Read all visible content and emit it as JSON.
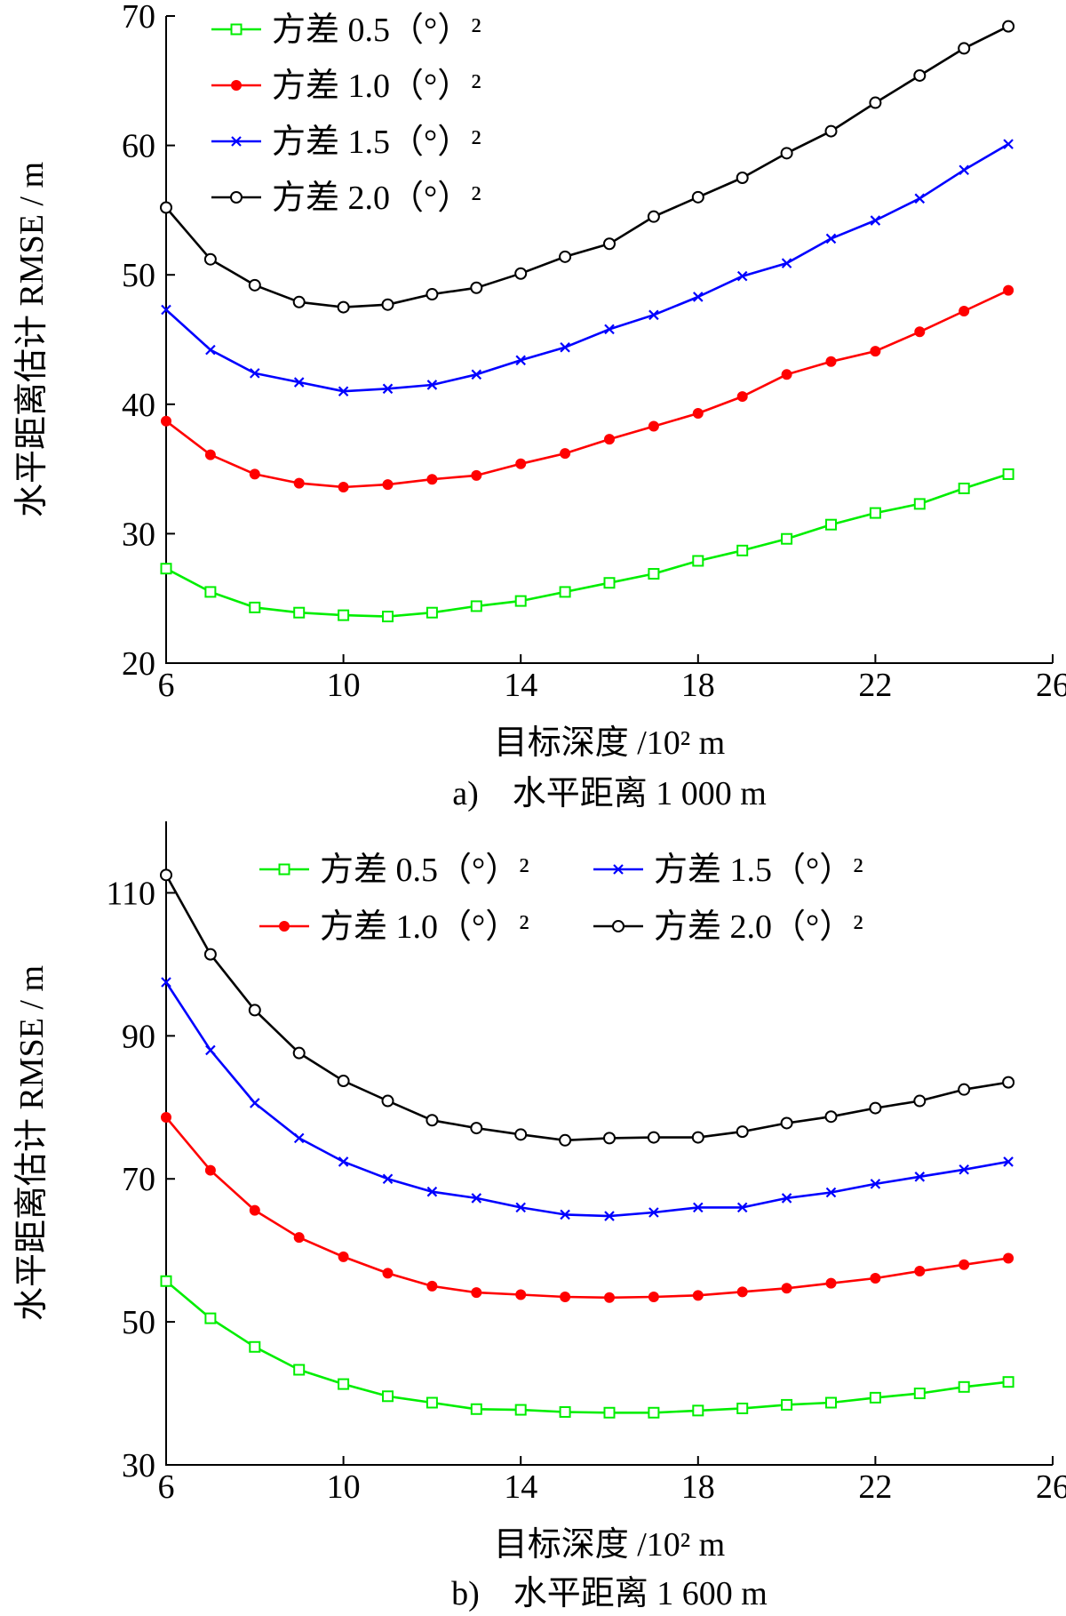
{
  "chart_data": [
    {
      "type": "line",
      "caption": "a)　水平距离 1 000 m",
      "xlabel": "目标深度 /10² m",
      "ylabel": "水平距离估计 RMSE / m",
      "xlim": [
        6,
        26
      ],
      "ylim": [
        20,
        70
      ],
      "xticks": [
        6,
        10,
        14,
        18,
        22,
        26
      ],
      "yticks": [
        20,
        30,
        40,
        50,
        60,
        70
      ],
      "x": [
        6,
        7,
        8,
        9,
        10,
        11,
        12,
        13,
        14,
        15,
        16,
        17,
        18,
        19,
        20,
        21,
        22,
        23,
        24,
        25
      ],
      "legend_position": "top-left",
      "series": [
        {
          "name": "方差 0.5（°）²",
          "color": "#00ee00",
          "marker": "square",
          "values": [
            27.3,
            25.5,
            24.3,
            23.9,
            23.7,
            23.6,
            23.9,
            24.4,
            24.8,
            25.5,
            26.2,
            26.9,
            27.9,
            28.7,
            29.6,
            30.7,
            31.6,
            32.3,
            33.5,
            34.6
          ]
        },
        {
          "name": "方差 1.0（°）²",
          "color": "#ff0000",
          "marker": "dot",
          "values": [
            38.7,
            36.1,
            34.6,
            33.9,
            33.6,
            33.8,
            34.2,
            34.5,
            35.4,
            36.2,
            37.3,
            38.3,
            39.3,
            40.6,
            42.3,
            43.3,
            44.1,
            45.6,
            47.2,
            48.8
          ]
        },
        {
          "name": "方差 1.5（°）²",
          "color": "#0000ff",
          "marker": "x",
          "values": [
            47.3,
            44.2,
            42.4,
            41.7,
            41.0,
            41.2,
            41.5,
            42.3,
            43.4,
            44.4,
            45.8,
            46.9,
            48.3,
            49.9,
            50.9,
            52.8,
            54.2,
            55.9,
            58.1,
            60.1
          ]
        },
        {
          "name": "方差 2.0（°）²",
          "color": "#000000",
          "marker": "circle",
          "values": [
            55.2,
            51.2,
            49.2,
            47.9,
            47.5,
            47.7,
            48.5,
            49.0,
            50.1,
            51.4,
            52.4,
            54.5,
            56.0,
            57.5,
            59.4,
            61.1,
            63.3,
            65.4,
            67.5,
            69.2
          ]
        }
      ]
    },
    {
      "type": "line",
      "caption": "b)　水平距离 1 600 m",
      "xlabel": "目标深度 /10² m",
      "ylabel": "水平距离估计 RMSE / m",
      "xlim": [
        6,
        26
      ],
      "ylim": [
        30,
        120
      ],
      "xticks": [
        6,
        10,
        14,
        18,
        22,
        26
      ],
      "yticks": [
        30,
        50,
        70,
        90,
        110
      ],
      "x": [
        6,
        7,
        8,
        9,
        10,
        11,
        12,
        13,
        14,
        15,
        16,
        17,
        18,
        19,
        20,
        21,
        22,
        23,
        24,
        25
      ],
      "legend_position": "top-right",
      "series": [
        {
          "name": "方差 0.5（°）²",
          "color": "#00ee00",
          "marker": "square",
          "values": [
            55.7,
            50.5,
            46.5,
            43.3,
            41.3,
            39.6,
            38.7,
            37.8,
            37.7,
            37.4,
            37.3,
            37.3,
            37.6,
            37.9,
            38.4,
            38.7,
            39.4,
            40.0,
            40.9,
            41.6
          ]
        },
        {
          "name": "方差 1.0（°）²",
          "color": "#ff0000",
          "marker": "dot",
          "values": [
            78.6,
            71.2,
            65.6,
            61.8,
            59.1,
            56.8,
            55.0,
            54.1,
            53.8,
            53.5,
            53.4,
            53.5,
            53.7,
            54.2,
            54.7,
            55.4,
            56.1,
            57.1,
            58.0,
            58.9
          ]
        },
        {
          "name": "方差 1.5（°）²",
          "color": "#0000ff",
          "marker": "x",
          "values": [
            97.5,
            88.0,
            80.6,
            75.7,
            72.4,
            70.0,
            68.2,
            67.3,
            66.0,
            65.0,
            64.8,
            65.3,
            66.0,
            66.0,
            67.3,
            68.1,
            69.3,
            70.3,
            71.3,
            72.4
          ]
        },
        {
          "name": "方差 2.0（°）²",
          "color": "#000000",
          "marker": "circle",
          "values": [
            112.5,
            101.4,
            93.6,
            87.6,
            83.7,
            80.9,
            78.2,
            77.1,
            76.2,
            75.4,
            75.7,
            75.8,
            75.8,
            76.6,
            77.8,
            78.7,
            79.9,
            80.9,
            82.5,
            83.5
          ]
        }
      ]
    }
  ]
}
